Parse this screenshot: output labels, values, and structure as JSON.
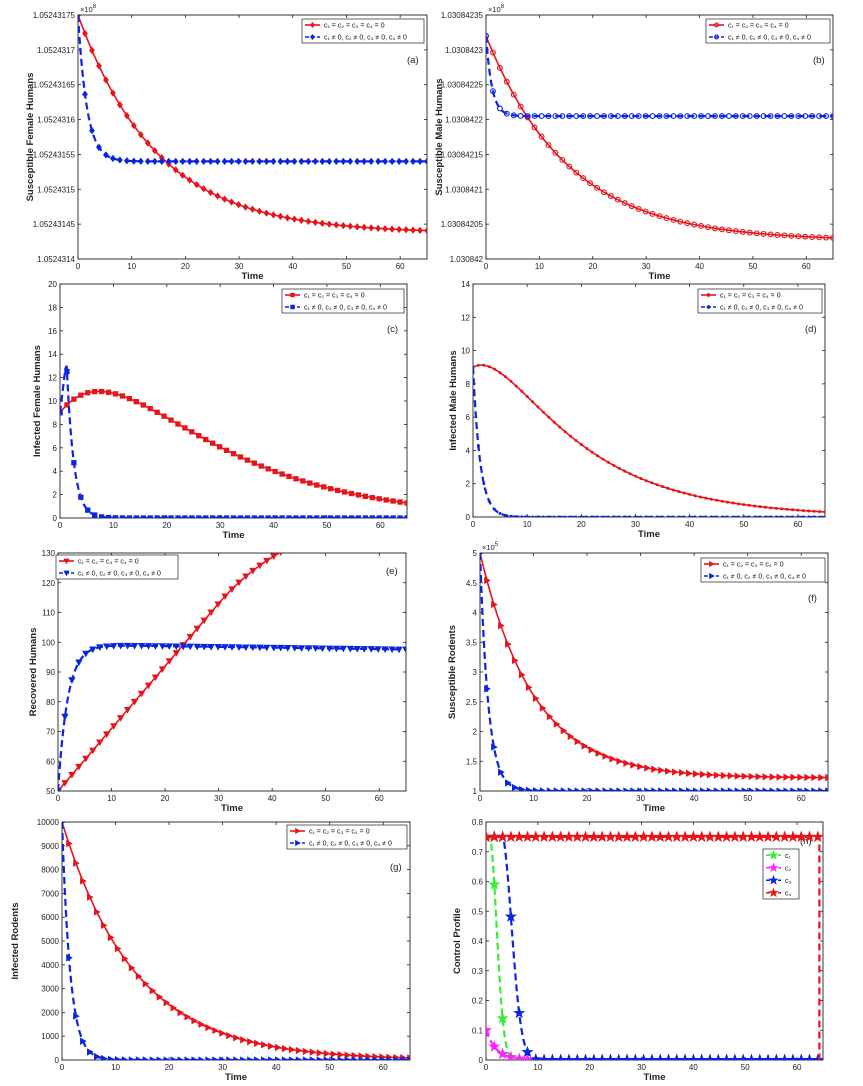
{
  "colors": {
    "red": "#e8141b",
    "blue": "#0a24e0",
    "green": "#33ee33",
    "magenta": "#ff22ff",
    "axis": "#222222"
  },
  "chart_data": [
    {
      "id": "a",
      "type": "line",
      "panel_label": "(a)",
      "xlabel": "Time",
      "ylabel": "Susceptible Female Humans",
      "xlim": [
        0,
        65
      ],
      "ylim": [
        105243140,
        105243175
      ],
      "xticks": [
        0,
        10,
        20,
        30,
        40,
        50,
        60
      ],
      "xtick_labels": [
        "0",
        "10",
        "20",
        "30",
        "40",
        "50",
        "60"
      ],
      "yticks": [
        105243140,
        105243145,
        105243150,
        105243155,
        105243160,
        105243165,
        105243170,
        105243175
      ],
      "ytick_labels": [
        "1.0524314",
        "1.05243145",
        "1.0524315",
        "1.05243155",
        "1.0524316",
        "1.05243165",
        "1.0524317",
        "1.05243175"
      ],
      "exponent": "×10",
      "exponent_power": "8",
      "marker": "diamond",
      "series": [
        {
          "name": "c₁ = c₂ = c₃ = c₄ = 0",
          "color": "red",
          "dash": false,
          "model": {
            "kind": "exp",
            "a": 105243143.7,
            "b": 31.3,
            "r": 0.068
          }
        },
        {
          "name": "c₁ ≠ 0, c₂ ≠ 0, c₃ ≠ 0, c₄ ≠ 0",
          "color": "blue",
          "dash": true,
          "model": {
            "kind": "exp",
            "a": 105243154.0,
            "b": 21.0,
            "r": 0.6
          }
        }
      ]
    },
    {
      "id": "b",
      "type": "line",
      "panel_label": "(b)",
      "xlabel": "Time",
      "ylabel": "Susceptible Male Humans",
      "xlim": [
        0,
        65
      ],
      "ylim": [
        103084200,
        103084235
      ],
      "xticks": [
        0,
        10,
        20,
        30,
        40,
        50,
        60
      ],
      "xtick_labels": [
        "0",
        "10",
        "20",
        "30",
        "40",
        "50",
        "60"
      ],
      "yticks": [
        103084200,
        103084205,
        103084210,
        103084215,
        103084220,
        103084225,
        103084230,
        103084235
      ],
      "ytick_labels": [
        "1.030842",
        "1.03084205",
        "1.0308421",
        "1.03084215",
        "1.0308422",
        "1.03084225",
        "1.0308423",
        "1.03084235"
      ],
      "exponent": "×10",
      "exponent_power": "8",
      "marker": "circle",
      "series": [
        {
          "name": "c₁ = c₂ = c₃ = c₄ = 0",
          "color": "red",
          "dash": false,
          "model": {
            "kind": "exp",
            "a": 103084202.6,
            "b": 29.4,
            "r": 0.065
          }
        },
        {
          "name": "c₁ ≠ 0, c₂ ≠ 0, c₃ ≠ 0, c₄ ≠ 0",
          "color": "blue",
          "dash": true,
          "model": {
            "kind": "exp",
            "a": 103084220.5,
            "b": 11.5,
            "r": 0.9
          }
        }
      ]
    },
    {
      "id": "c",
      "type": "line",
      "panel_label": "(c)",
      "xlabel": "Time",
      "ylabel": "Infected Female Humans",
      "xlim": [
        0,
        65
      ],
      "ylim": [
        0,
        20
      ],
      "xticks": [
        0,
        10,
        20,
        30,
        40,
        50,
        60
      ],
      "xtick_labels": [
        "0",
        "10",
        "20",
        "30",
        "40",
        "50",
        "60"
      ],
      "yticks": [
        0,
        2,
        4,
        6,
        8,
        10,
        12,
        14,
        16,
        18,
        20
      ],
      "ytick_labels": [
        "0",
        "2",
        "4",
        "6",
        "8",
        "10",
        "12",
        "14",
        "16",
        "18",
        "20"
      ],
      "marker": "square",
      "series": [
        {
          "name": "c₁ = c₂ = c₃ = c₄ = 0",
          "color": "red",
          "dash": false,
          "model": {
            "kind": "rise_fall",
            "p0": 9,
            "a": 35,
            "r1": 0.05,
            "r2": 0.09
          }
        },
        {
          "name": "c₁ ≠ 0, c₂ ≠ 0, c₃ ≠ 0, c₄ ≠ 0",
          "color": "blue",
          "dash": true,
          "model": {
            "kind": "hump",
            "p0": 9,
            "pk": 13.5,
            "t_peak": 1.2,
            "r": 0.75
          }
        }
      ]
    },
    {
      "id": "d",
      "type": "line",
      "panel_label": "(d)",
      "xlabel": "Time",
      "ylabel": "Infected Male Humans",
      "xlim": [
        0,
        65
      ],
      "ylim": [
        0,
        14
      ],
      "xticks": [
        0,
        10,
        20,
        30,
        40,
        50,
        60
      ],
      "xtick_labels": [
        "0",
        "10",
        "20",
        "30",
        "40",
        "50",
        "60"
      ],
      "yticks": [
        0,
        2,
        4,
        6,
        8,
        10,
        12,
        14
      ],
      "ytick_labels": [
        "0",
        "2",
        "4",
        "6",
        "8",
        "10",
        "12",
        "14"
      ],
      "marker": "dot",
      "series": [
        {
          "name": "c₁ = c₂ = c₃ = c₄ = 0",
          "color": "red",
          "dash": false,
          "model": {
            "kind": "rise_fall",
            "p0": 9,
            "a": 15,
            "r1": 0.06,
            "r2": 0.18
          }
        },
        {
          "name": "c₁ ≠ 0, c₂ ≠ 0, c₃ ≠ 0, c₄ ≠ 0",
          "color": "blue",
          "dash": true,
          "model": {
            "kind": "exp",
            "a": 0,
            "b": 9,
            "r": 0.75
          }
        }
      ]
    },
    {
      "id": "e",
      "type": "line",
      "panel_label": "(e)",
      "xlabel": "Time",
      "ylabel": "Recovered Humans",
      "xlim": [
        0,
        65
      ],
      "ylim": [
        50,
        130
      ],
      "xticks": [
        0,
        10,
        20,
        30,
        40,
        50,
        60
      ],
      "xtick_labels": [
        "0",
        "10",
        "20",
        "30",
        "40",
        "50",
        "60"
      ],
      "yticks": [
        50,
        60,
        70,
        80,
        90,
        100,
        110,
        120,
        130
      ],
      "ytick_labels": [
        "50",
        "60",
        "70",
        "80",
        "90",
        "100",
        "110",
        "120",
        "130"
      ],
      "marker": "tri-down",
      "series": [
        {
          "name": "c₁ = c₂ = c₃ = c₄ = 0",
          "color": "red",
          "dash": false,
          "model": {
            "kind": "sat_linear",
            "p0": 50,
            "tc": 30,
            "slope": 2.1,
            "k": 0.063
          }
        },
        {
          "name": "c₁ ≠ 0, c₂ ≠ 0, c₃ ≠ 0, c₄ ≠ 0",
          "color": "blue",
          "dash": true,
          "model": {
            "kind": "sat_drift",
            "p0": 50,
            "a": 99,
            "r": 0.55,
            "drift": 0.025,
            "t_d": 8
          }
        }
      ]
    },
    {
      "id": "f",
      "type": "line",
      "panel_label": "(f)",
      "xlabel": "Time",
      "ylabel": "Susceptible Rodents",
      "xlim": [
        0,
        65
      ],
      "ylim": [
        100000,
        500000
      ],
      "xticks": [
        0,
        10,
        20,
        30,
        40,
        50,
        60
      ],
      "xtick_labels": [
        "0",
        "10",
        "20",
        "30",
        "40",
        "50",
        "60"
      ],
      "yticks": [
        100000,
        150000,
        200000,
        250000,
        300000,
        350000,
        400000,
        450000,
        500000
      ],
      "ytick_labels": [
        "1",
        "1.5",
        "2",
        "2.5",
        "3",
        "3.5",
        "4",
        "4.5",
        "5"
      ],
      "exponent": "×10",
      "exponent_power": "5",
      "marker": "tri-right",
      "series": [
        {
          "name": "c₁ = c₂ = c₃ = c₄ = 0",
          "color": "red",
          "dash": false,
          "model": {
            "kind": "exp",
            "a": 122000,
            "b": 378000,
            "r": 0.1
          }
        },
        {
          "name": "c₁ ≠ 0, c₂ ≠ 0, c₃ ≠ 0, c₄ ≠ 0",
          "color": "blue",
          "dash": true,
          "model": {
            "kind": "exp",
            "a": 100000,
            "b": 400000,
            "r": 0.65
          }
        }
      ]
    },
    {
      "id": "g",
      "type": "line",
      "panel_label": "(g)",
      "xlabel": "Time",
      "ylabel": "Infected Rodents",
      "xlim": [
        0,
        65
      ],
      "ylim": [
        0,
        10000
      ],
      "xticks": [
        0,
        10,
        20,
        30,
        40,
        50,
        60
      ],
      "xtick_labels": [
        "0",
        "10",
        "20",
        "30",
        "40",
        "50",
        "60"
      ],
      "yticks": [
        0,
        1000,
        2000,
        3000,
        4000,
        5000,
        6000,
        7000,
        8000,
        9000,
        10000
      ],
      "ytick_labels": [
        "0",
        "1000",
        "2000",
        "3000",
        "4000",
        "5000",
        "6000",
        "7000",
        "8000",
        "9000",
        "10000"
      ],
      "marker": "tri-right",
      "series": [
        {
          "name": "c₁ = c₂ = c₃ = c₄ = 0",
          "color": "red",
          "dash": false,
          "model": {
            "kind": "exp",
            "a": 0,
            "b": 10000,
            "r": 0.073
          }
        },
        {
          "name": "c₁ ≠ 0, c₂ ≠ 0, c₃ ≠ 0, c₄ ≠ 0",
          "color": "blue",
          "dash": true,
          "model": {
            "kind": "exp",
            "a": 0,
            "b": 10000,
            "r": 0.65
          }
        }
      ]
    },
    {
      "id": "h",
      "type": "line",
      "panel_label": "(h)",
      "xlabel": "Time",
      "ylabel": "Control Profile",
      "xlim": [
        0,
        65
      ],
      "ylim": [
        0,
        0.8
      ],
      "xticks": [
        0,
        10,
        20,
        30,
        40,
        50,
        60
      ],
      "xtick_labels": [
        "0",
        "10",
        "20",
        "30",
        "40",
        "50",
        "60"
      ],
      "yticks": [
        0,
        0.1,
        0.2,
        0.3,
        0.4,
        0.5,
        0.6,
        0.7,
        0.8
      ],
      "ytick_labels": [
        "0",
        "0.1",
        "0.2",
        "0.3",
        "0.4",
        "0.5",
        "0.6",
        "0.7",
        "0.8"
      ],
      "marker": "star",
      "series": [
        {
          "name": "c₁",
          "color": "green",
          "dash": true,
          "model": {
            "kind": "control",
            "hold": 0.75,
            "t_hold": 0.8,
            "r": 0.5
          }
        },
        {
          "name": "c₂",
          "color": "magenta",
          "dash": true,
          "model": {
            "kind": "exp",
            "a": 0,
            "b": 0.1,
            "r": 0.5
          }
        },
        {
          "name": "c₃",
          "color": "blue",
          "dash": true,
          "model": {
            "kind": "control",
            "hold": 0.75,
            "t_hold": 3.3,
            "r": 0.26
          }
        },
        {
          "name": "c₄",
          "color": "red",
          "dash": true,
          "model": {
            "kind": "step_end",
            "hold": 0.75,
            "t_end": 64.3
          }
        }
      ]
    }
  ]
}
